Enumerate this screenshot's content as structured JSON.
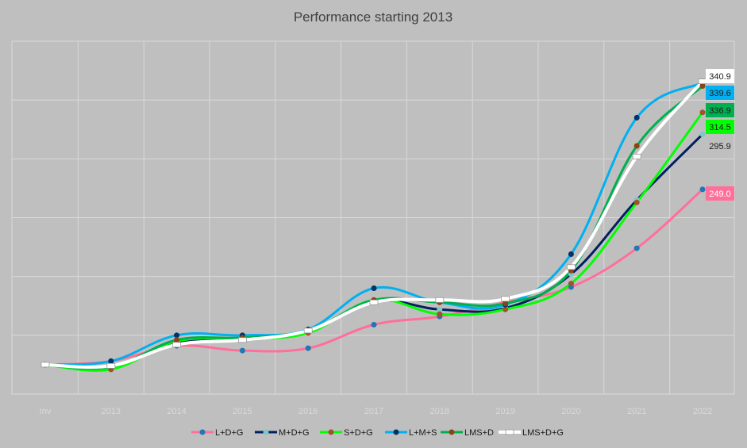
{
  "chart_data": {
    "type": "line",
    "title": "Performance starting 2013",
    "categories": [
      "Inv",
      "2013",
      "2014",
      "2015",
      "2016",
      "2017",
      "2018",
      "2019",
      "2020",
      "2021",
      "2022"
    ],
    "xlabel": "",
    "ylabel": "",
    "ylim": [
      75,
      375
    ],
    "grid": true,
    "legend_position": "bottom",
    "series": [
      {
        "name": "L+D+G",
        "color": "#ff6f9a",
        "marker_color": "#1f77b4",
        "values": [
          100,
          103,
          116,
          112,
          114,
          134,
          141,
          153,
          166,
          199,
          249.0
        ],
        "end_label": "249.0",
        "label_bg": "#ff6f9a",
        "label_fg": "#ffffff"
      },
      {
        "name": "M+D+G",
        "color": "#002060",
        "marker_color": "#7fc7c7",
        "values": [
          100,
          99,
          118,
          122,
          128,
          154,
          147,
          148,
          177,
          240,
          295.9
        ],
        "end_label": "295.9",
        "label_bg": "#bfbfbf",
        "label_fg": "#1a1a1a"
      },
      {
        "name": "S+D+G",
        "color": "#00ff00",
        "marker_color": "#a0522d",
        "values": [
          100,
          96,
          120,
          122,
          127,
          155,
          143,
          147,
          169,
          238,
          314.5
        ],
        "end_label": "314.5",
        "label_bg": "#00ff00",
        "label_fg": "#1a1a1a"
      },
      {
        "name": "L+M+S",
        "color": "#00b0f0",
        "marker_color": "#003366",
        "values": [
          100,
          103,
          125,
          125,
          130,
          165,
          153,
          151,
          194,
          310,
          339.6
        ],
        "end_label": "339.6",
        "label_bg": "#00b0f0",
        "label_fg": "#1a1a1a"
      },
      {
        "name": "LMS+D",
        "color": "#00b050",
        "marker_color": "#8b4513",
        "values": [
          100,
          98,
          121,
          123,
          129,
          155,
          153,
          152,
          180,
          286,
          336.9
        ],
        "end_label": "336.9",
        "label_bg": "#00b050",
        "label_fg": "#1a1a1a"
      },
      {
        "name": "LMS+D+G",
        "color": "#ffffff",
        "marker_color": "#ffffff",
        "values": [
          100,
          99,
          117,
          121,
          129,
          153,
          155,
          156,
          183,
          277,
          340.9
        ],
        "end_label": "340.9",
        "label_bg": "#ffffff",
        "label_fg": "#1a1a1a"
      }
    ]
  },
  "colors": {
    "background": "#bfbfbf",
    "gridline": "#d9d9d9",
    "title": "#404040"
  }
}
